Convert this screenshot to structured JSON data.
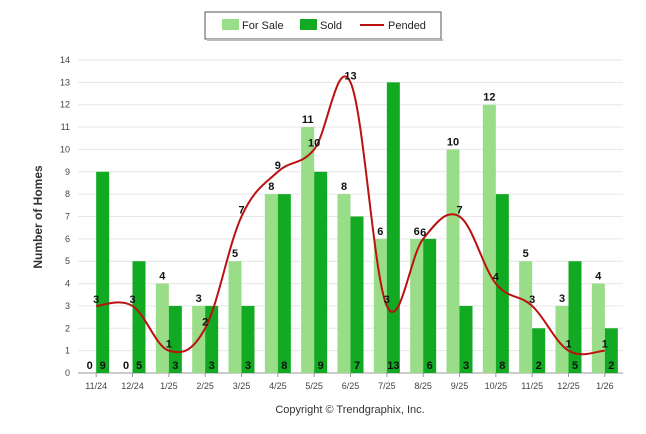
{
  "chart_data": {
    "type": "bar",
    "title": "",
    "xlabel": "",
    "ylabel": "Number of Homes",
    "ylim": [
      0,
      14
    ],
    "grid": true,
    "legend_position": "top-center",
    "categories": [
      "11/24",
      "12/24",
      "1/25",
      "2/25",
      "3/25",
      "4/25",
      "5/25",
      "6/25",
      "7/25",
      "8/25",
      "9/25",
      "10/25",
      "11/25",
      "12/25",
      "1/26"
    ],
    "series": [
      {
        "name": "For Sale",
        "kind": "bar",
        "color": "#99dd88",
        "values": [
          0,
          0,
          4,
          3,
          5,
          8,
          11,
          8,
          6,
          6,
          10,
          12,
          5,
          3,
          4
        ]
      },
      {
        "name": "Sold",
        "kind": "bar",
        "color": "#11aa22",
        "values": [
          9,
          5,
          3,
          3,
          3,
          8,
          9,
          7,
          13,
          6,
          3,
          8,
          2,
          5,
          2
        ]
      },
      {
        "name": "Pended",
        "kind": "line",
        "color": "#bb1111",
        "values": [
          3,
          3,
          1,
          2,
          7,
          9,
          10,
          13,
          3,
          6,
          7,
          4,
          3,
          1,
          1
        ]
      }
    ],
    "footer": "Copyright © Trendgraphix, Inc."
  }
}
